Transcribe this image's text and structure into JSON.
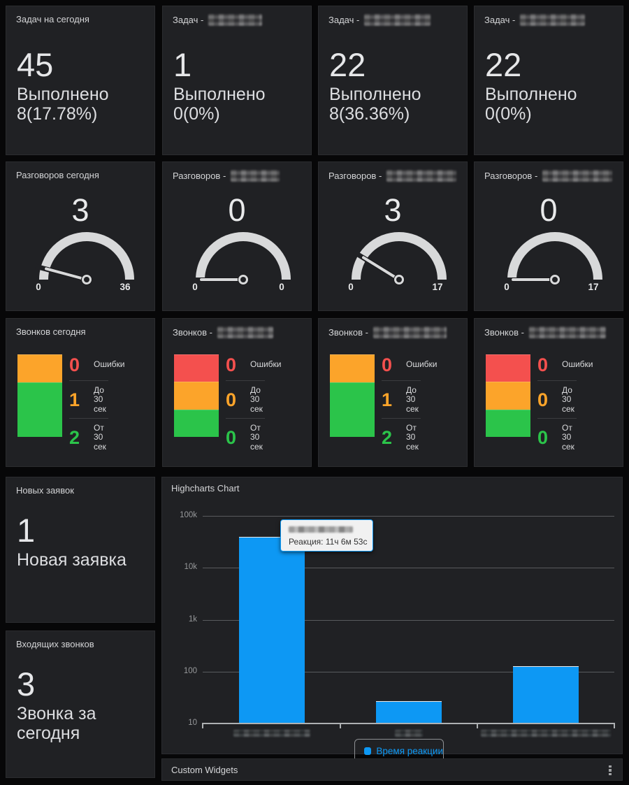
{
  "colors": {
    "red": "#f4504e",
    "orange": "#fca42a",
    "green": "#2bc44a",
    "blue": "#0d98f4",
    "gauge_arc": "#d8d9da",
    "panel_bg": "#202124",
    "page_bg": "#070708"
  },
  "task_panels": [
    {
      "title": "Задач на сегодня",
      "censored": false,
      "value": "45",
      "sub1": "Выполнено",
      "sub2": "8(17.78%)"
    },
    {
      "title": "Задач -",
      "censored": true,
      "value": "1",
      "sub1": "Выполнено 0(0%)",
      "sub2": ""
    },
    {
      "title": "Задач -",
      "censored": true,
      "value": "22",
      "sub1": "Выполнено",
      "sub2": "8(36.36%)"
    },
    {
      "title": "Задач -",
      "censored": true,
      "value": "22",
      "sub1": "Выполнено 0(0%)",
      "sub2": ""
    }
  ],
  "gauge_panels": [
    {
      "title": "Разговоров сегодня",
      "censored": false,
      "value": "3",
      "value_num": 3,
      "min_label": "0",
      "max_label": "36",
      "max_num": 36
    },
    {
      "title": "Разговоров -",
      "censored": true,
      "value": "0",
      "value_num": 0,
      "min_label": "0",
      "max_label": "0",
      "max_num": 0
    },
    {
      "title": "Разговоров -",
      "censored": true,
      "value": "3",
      "value_num": 3,
      "min_label": "0",
      "max_label": "17",
      "max_num": 17
    },
    {
      "title": "Разговоров -",
      "censored": true,
      "value": "0",
      "value_num": 0,
      "min_label": "0",
      "max_label": "17",
      "max_num": 17
    }
  ],
  "call_panels": [
    {
      "title": "Звонков сегодня",
      "censored": false,
      "segments": [
        {
          "color": "orange",
          "h": 40
        },
        {
          "color": "green",
          "h": 78
        }
      ],
      "rows": [
        {
          "value": "0",
          "color": "red",
          "lines": [
            "Ошибки"
          ]
        },
        {
          "value": "1",
          "color": "orange",
          "lines": [
            "До",
            "30",
            "сек"
          ]
        },
        {
          "value": "2",
          "color": "green",
          "lines": [
            "От",
            "30",
            "сек"
          ]
        }
      ]
    },
    {
      "title": "Звонков -",
      "censored": true,
      "segments": [
        {
          "color": "red",
          "h": 39
        },
        {
          "color": "orange",
          "h": 40
        },
        {
          "color": "green",
          "h": 39
        }
      ],
      "rows": [
        {
          "value": "0",
          "color": "red",
          "lines": [
            "Ошибки"
          ]
        },
        {
          "value": "0",
          "color": "orange",
          "lines": [
            "До",
            "30",
            "сек"
          ]
        },
        {
          "value": "0",
          "color": "green",
          "lines": [
            "От",
            "30",
            "сек"
          ]
        }
      ]
    },
    {
      "title": "Звонков -",
      "censored": true,
      "segments": [
        {
          "color": "orange",
          "h": 40
        },
        {
          "color": "green",
          "h": 78
        }
      ],
      "rows": [
        {
          "value": "0",
          "color": "red",
          "lines": [
            "Ошибки"
          ]
        },
        {
          "value": "1",
          "color": "orange",
          "lines": [
            "До",
            "30",
            "сек"
          ]
        },
        {
          "value": "2",
          "color": "green",
          "lines": [
            "От",
            "30",
            "сек"
          ]
        }
      ]
    },
    {
      "title": "Звонков -",
      "censored": true,
      "segments": [
        {
          "color": "red",
          "h": 39
        },
        {
          "color": "orange",
          "h": 40
        },
        {
          "color": "green",
          "h": 39
        }
      ],
      "rows": [
        {
          "value": "0",
          "color": "red",
          "lines": [
            "Ошибки"
          ]
        },
        {
          "value": "0",
          "color": "orange",
          "lines": [
            "До",
            "30",
            "сек"
          ]
        },
        {
          "value": "0",
          "color": "green",
          "lines": [
            "От",
            "30",
            "сек"
          ]
        }
      ]
    }
  ],
  "stat_panels": [
    {
      "title": "Новых заявок",
      "value": "1",
      "sub1": "Новая заявка",
      "sub2": ""
    },
    {
      "title": "Входящих звонков",
      "value": "3",
      "sub1": "Звонка за",
      "sub2": "сегодня"
    }
  ],
  "chart": {
    "title": "Highcharts Chart",
    "tooltip_line": "Реакция: 11ч 6м 53с",
    "tooltip_header_censored": true
  },
  "chart_data": {
    "type": "bar",
    "y_scale": "log",
    "ylim": [
      10,
      100000
    ],
    "yticks": [
      "100k",
      "10k",
      "1k",
      "100",
      "10"
    ],
    "categories": [
      "",
      "",
      ""
    ],
    "categories_censored": true,
    "series": [
      {
        "name": "Время реакции",
        "values": [
          40013,
          28,
          130
        ]
      }
    ],
    "grid": true,
    "legend_position": "bottom",
    "bar_color": "#0d98f4"
  },
  "custom_widgets": {
    "title": "Custom Widgets"
  }
}
